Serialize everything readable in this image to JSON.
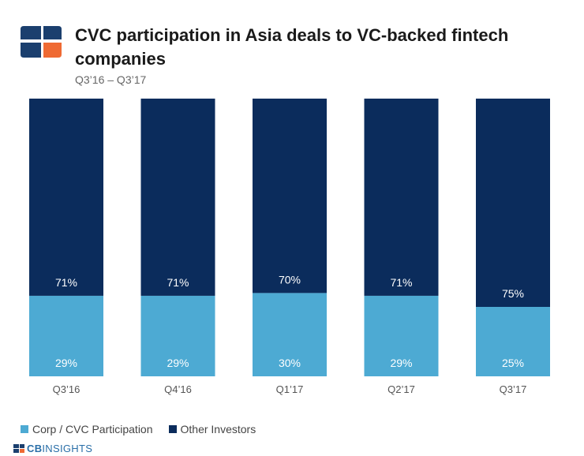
{
  "header": {
    "title": "CVC participation in Asia deals to VC-backed fintech companies",
    "subtitle": "Q3’16 – Q3’17"
  },
  "footer": {
    "brand_bold": "CB",
    "brand_rest": "INSIGHTS"
  },
  "colors": {
    "corp": "#4daad3",
    "other": "#0b2c5c",
    "logo_blue": "#1b3f6e",
    "logo_orange": "#ef6a33"
  },
  "chart_data": {
    "type": "bar",
    "stacked": true,
    "percent": true,
    "categories": [
      "Q3’16",
      "Q4’16",
      "Q1’17",
      "Q2’17",
      "Q3’17"
    ],
    "series": [
      {
        "name": "Corp / CVC Participation",
        "values": [
          29,
          29,
          30,
          29,
          25
        ],
        "labels": [
          "29%",
          "29%",
          "30%",
          "29%",
          "25%"
        ]
      },
      {
        "name": "Other Investors",
        "values": [
          71,
          71,
          70,
          71,
          75
        ],
        "labels": [
          "71%",
          "71%",
          "70%",
          "71%",
          "75%"
        ]
      }
    ],
    "ylim": [
      0,
      100
    ],
    "grid": false,
    "legend": "bottom-left"
  }
}
